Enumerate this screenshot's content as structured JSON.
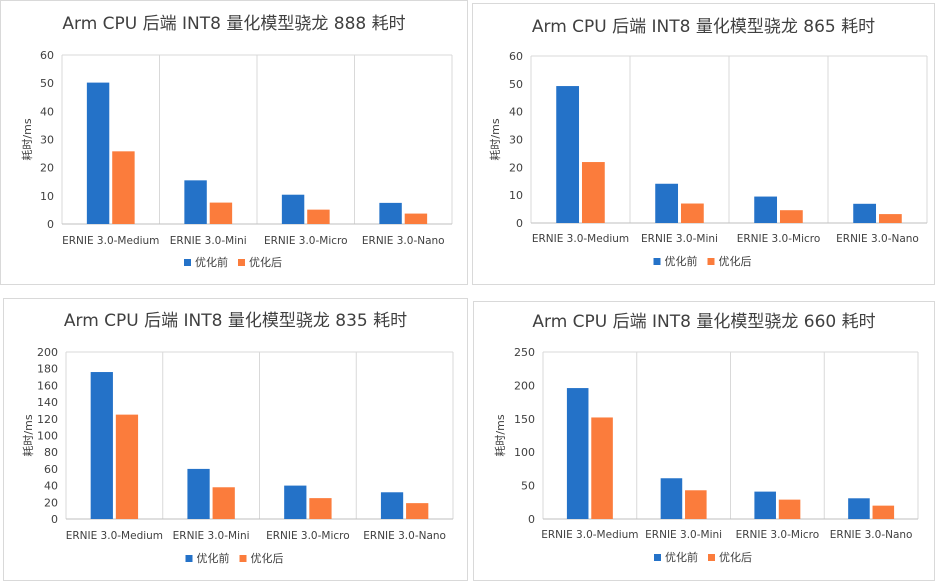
{
  "chart_data": [
    {
      "type": "bar",
      "title": "Arm CPU 后端 INT8 量化模型骁龙 888 耗时",
      "ylabel": "耗时/ms",
      "categories": [
        "ERNIE 3.0-Medium",
        "ERNIE 3.0-Mini",
        "ERNIE 3.0-Micro",
        "ERNIE 3.0-Nano"
      ],
      "yticks": [
        "0",
        "10",
        "20",
        "30",
        "40",
        "50",
        "60"
      ],
      "ylim": [
        0,
        60
      ],
      "series": [
        {
          "name": "优化前",
          "values": [
            50.2,
            15.5,
            10.4,
            7.5
          ]
        },
        {
          "name": "优化后",
          "values": [
            25.8,
            7.6,
            5.1,
            3.7
          ]
        }
      ],
      "legend": "bottom",
      "grid": "vertical"
    },
    {
      "type": "bar",
      "title": "Arm CPU 后端 INT8 量化模型骁龙 865 耗时",
      "ylabel": "耗时/ms",
      "categories": [
        "ERNIE 3.0-Medium",
        "ERNIE 3.0-Mini",
        "ERNIE 3.0-Micro",
        "ERNIE 3.0-Nano"
      ],
      "yticks": [
        "0",
        "10",
        "20",
        "30",
        "40",
        "50",
        "60"
      ],
      "ylim": [
        0,
        60
      ],
      "series": [
        {
          "name": "优化前",
          "values": [
            49.2,
            14.1,
            9.5,
            6.9
          ]
        },
        {
          "name": "优化后",
          "values": [
            21.9,
            7.0,
            4.6,
            3.2
          ]
        }
      ],
      "legend": "bottom",
      "grid": "vertical"
    },
    {
      "type": "bar",
      "title": "Arm CPU 后端 INT8 量化模型骁龙 835 耗时",
      "ylabel": "耗时/ms",
      "categories": [
        "ERNIE 3.0-Medium",
        "ERNIE 3.0-Mini",
        "ERNIE 3.0-Micro",
        "ERNIE 3.0-Nano"
      ],
      "yticks": [
        "0",
        "20",
        "40",
        "60",
        "80",
        "100",
        "120",
        "140",
        "160",
        "180",
        "200"
      ],
      "ylim": [
        0,
        200
      ],
      "series": [
        {
          "name": "优化前",
          "values": [
            176,
            60,
            40,
            32
          ]
        },
        {
          "name": "优化后",
          "values": [
            125,
            38,
            25,
            19
          ]
        }
      ],
      "legend": "bottom",
      "grid": "vertical"
    },
    {
      "type": "bar",
      "title": "Arm CPU 后端 INT8 量化模型骁龙 660 耗时",
      "ylabel": "耗时/ms",
      "categories": [
        "ERNIE 3.0-Medium",
        "ERNIE 3.0-Mini",
        "ERNIE 3.0-Micro",
        "ERNIE 3.0-Nano"
      ],
      "yticks": [
        "0",
        "50",
        "100",
        "150",
        "200",
        "250"
      ],
      "ylim": [
        0,
        250
      ],
      "series": [
        {
          "name": "优化前",
          "values": [
            196,
            61,
            41,
            31
          ]
        },
        {
          "name": "优化后",
          "values": [
            152,
            43,
            29,
            20
          ]
        }
      ],
      "legend": "bottom",
      "grid": "vertical"
    }
  ],
  "colors": {
    "series": [
      "#2472c8",
      "#fb7c3c"
    ],
    "grid": "#d9d9d9",
    "text": "#404040",
    "title": "#404040",
    "border": "#d9d9d9"
  }
}
